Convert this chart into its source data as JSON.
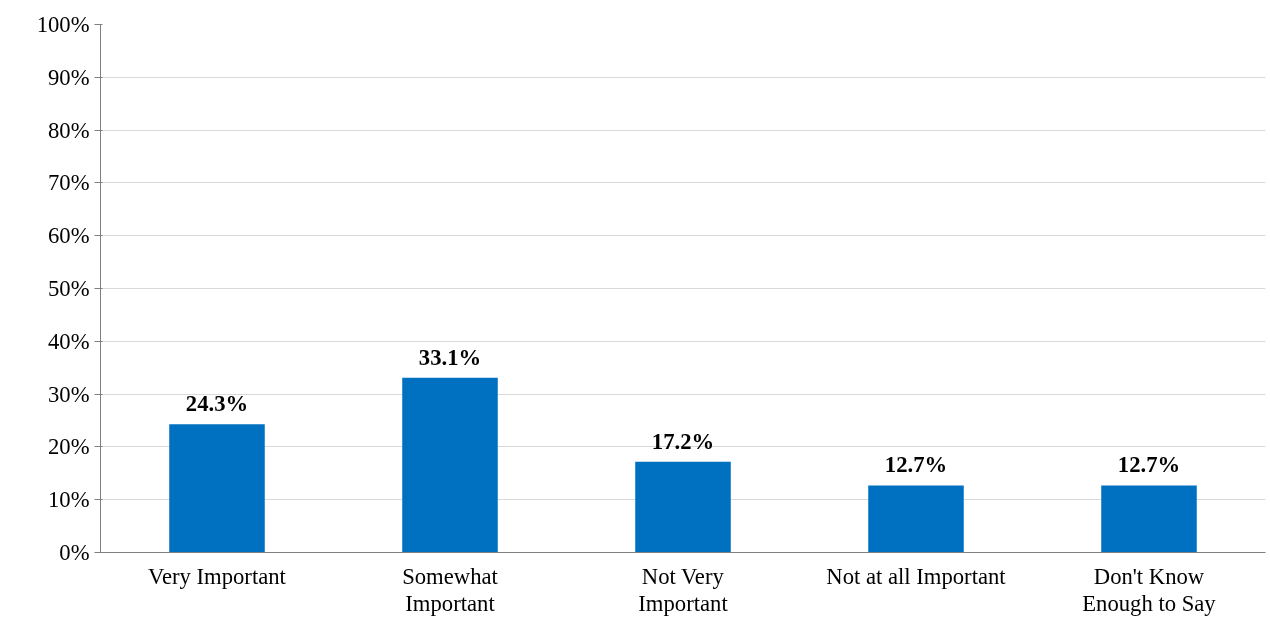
{
  "chart_data": {
    "type": "bar",
    "categories": [
      "Very Important",
      "Somewhat\nImportant",
      "Not Very\nImportant",
      "Not at all Important",
      "Don't Know\nEnough to Say"
    ],
    "values": [
      24.3,
      33.1,
      17.2,
      12.7,
      12.7
    ],
    "color": "#0070c0",
    "value_labels": [
      "24.3%",
      "33.1%",
      "17.2%",
      "12.7%",
      "12.7%"
    ],
    "ylim": [
      0,
      100
    ],
    "yticks": [
      {
        "value": 0,
        "label": "0%"
      },
      {
        "value": 10,
        "label": "10%"
      },
      {
        "value": 20,
        "label": "20%"
      },
      {
        "value": 30,
        "label": "30%"
      },
      {
        "value": 40,
        "label": "40%"
      },
      {
        "value": 50,
        "label": "50%"
      },
      {
        "value": 60,
        "label": "60%"
      },
      {
        "value": 70,
        "label": "70%"
      },
      {
        "value": 80,
        "label": "80%"
      },
      {
        "value": 90,
        "label": "90%"
      },
      {
        "value": 100,
        "label": "100%"
      }
    ],
    "grid": "y"
  }
}
